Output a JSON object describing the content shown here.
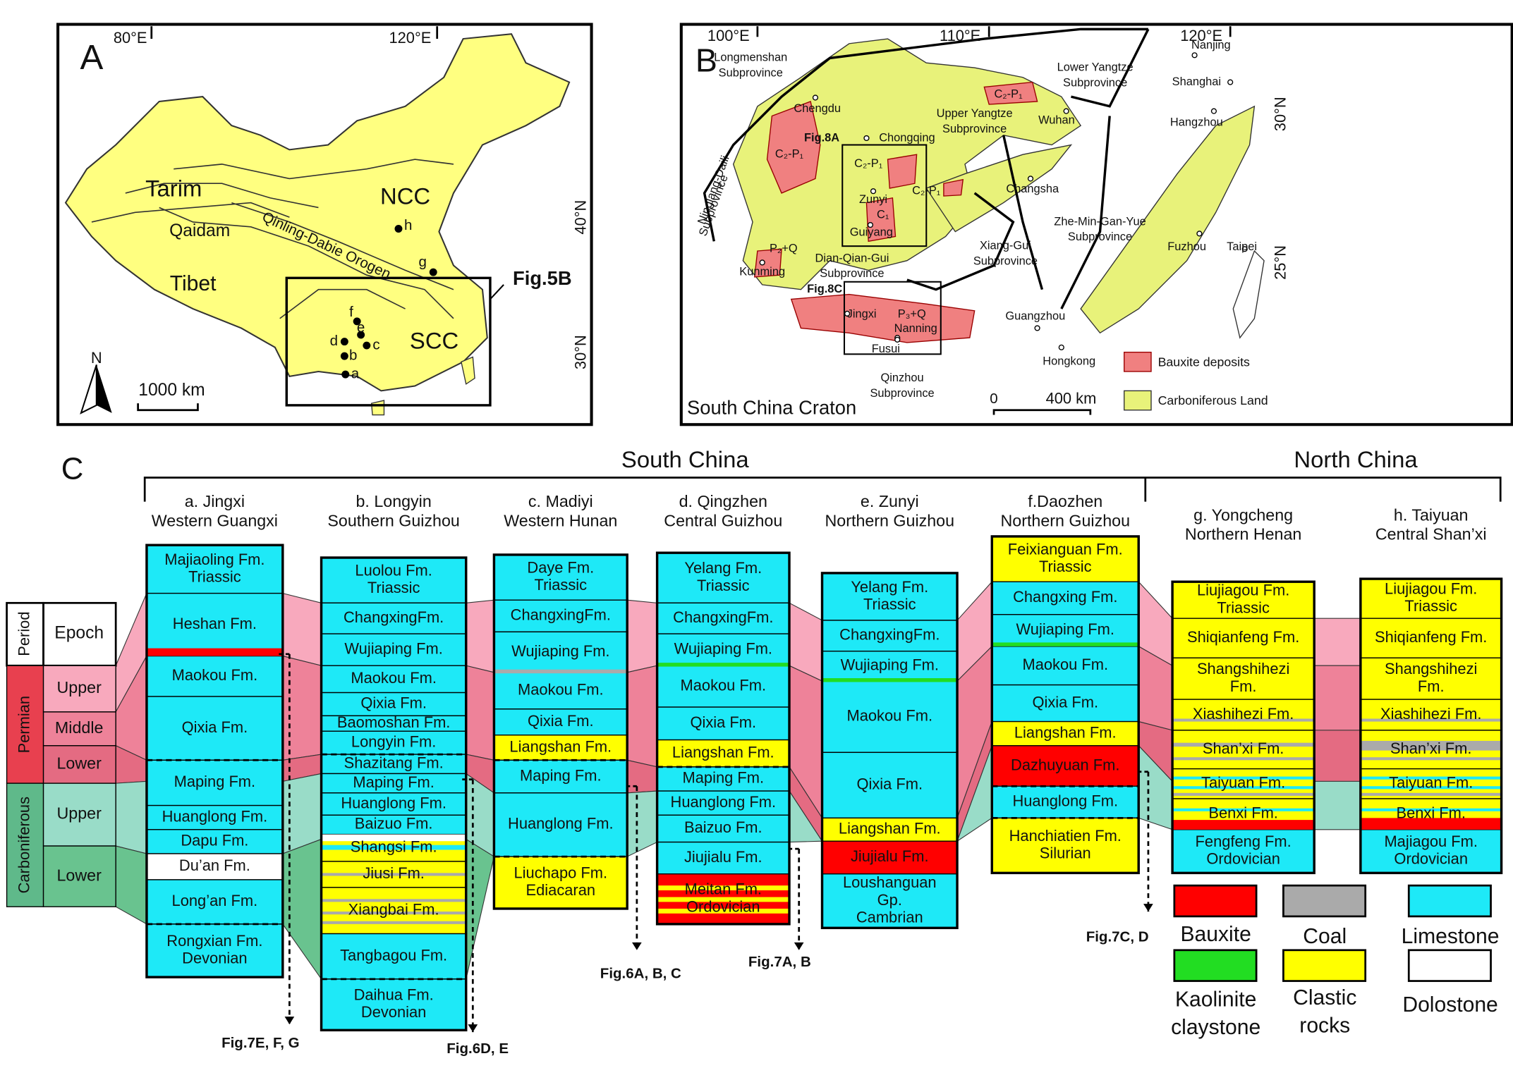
{
  "panel_a": {
    "letter": "A",
    "lon_labels": [
      "80°E",
      "120°E"
    ],
    "lat_labels": [
      "40°N",
      "30°N"
    ],
    "regions": [
      "Tarim",
      "Qaidam",
      "Qinling-Dabie Orogen",
      "NCC",
      "Tibet",
      "SCC"
    ],
    "sites": [
      "a",
      "b",
      "c",
      "d",
      "e",
      "f",
      "g",
      "h"
    ],
    "callout": "Fig.5B",
    "north": "N",
    "scale": "1000 km"
  },
  "panel_b": {
    "letter": "B",
    "lon_labels": [
      "100°E",
      "110°E",
      "120°E"
    ],
    "lat_labels": [
      "30°N",
      "25°N"
    ],
    "subprovinces": [
      [
        "Longmenshan",
        "Subprovince"
      ],
      [
        "Lower Yangtze",
        "Subprovince"
      ],
      [
        "Upper Yangtze",
        "Subprovince"
      ],
      [
        "Ninglang-Daili",
        "Subprovince"
      ],
      [
        "Dian-Qian-Gui",
        "Subprovince"
      ],
      [
        "Xiang-Gui",
        "Subprovince"
      ],
      [
        "Zhe-Min-Gan-Yue",
        "Subprovince"
      ],
      [
        "Qinzhou",
        "Subprovince"
      ]
    ],
    "cities": [
      "Nanjing",
      "Shanghai",
      "Hangzhou",
      "Wuhan",
      "Chongqing",
      "Chengdu",
      "Changsha",
      "Zunyi",
      "Guiyang",
      "Kunming",
      "Jingxi",
      "Nanning",
      "Fusui",
      "Guangzhou",
      "Hongkong",
      "Fuzhou",
      "Taipei"
    ],
    "deposit_ages": [
      "C₂-P₁",
      "C₂-P₁",
      "C₂-P₁",
      "C₂-P₁",
      "C₁",
      "P₂+Q",
      "P₃+Q"
    ],
    "boxes": [
      "Fig.8A",
      "Fig.8C"
    ],
    "title": "South China Craton",
    "scale_labels": [
      "0",
      "400 km"
    ],
    "legend": [
      "Bauxite deposits",
      "Carboniferous Land"
    ]
  },
  "panel_c": {
    "letter": "C",
    "regions": [
      "South China",
      "North China"
    ],
    "timescale": {
      "header": [
        "Period",
        "Epoch"
      ],
      "periods": [
        "Permian",
        "Carboniferous"
      ],
      "epochs": [
        "Upper",
        "Middle",
        "Lower",
        "Upper",
        "Lower"
      ]
    },
    "columns": [
      {
        "title": [
          "a. Jingxi",
          "Western Guangxi"
        ],
        "units": [
          [
            "Majiaoling Fm.",
            "Triassic"
          ],
          "Heshan Fm.",
          "Maokou Fm.",
          "Qixia Fm.",
          "Maping Fm.",
          "Huanglong Fm.",
          "Dapu Fm.",
          "Du’an Fm.",
          "Long’an Fm.",
          [
            "Rongxian Fm.",
            "Devonian"
          ]
        ]
      },
      {
        "title": [
          "b. Longyin",
          "Southern Guizhou"
        ],
        "units": [
          [
            "Luolou Fm.",
            "Triassic"
          ],
          "ChangxingFm.",
          "Wujiaping Fm.",
          "Maokou Fm.",
          "Qixia Fm.",
          "Baomoshan Fm.",
          "Longyin Fm.",
          "Shazitang Fm.",
          "Maping Fm.",
          "Huanglong Fm.",
          "Baizuo Fm.",
          "Shangsi Fm.",
          "Jiusi Fm.",
          "Xiangbai Fm.",
          "Tangbagou Fm.",
          [
            "Daihua Fm.",
            "Devonian"
          ]
        ]
      },
      {
        "title": [
          "c. Madiyi",
          "Western Hunan"
        ],
        "units": [
          [
            "Daye Fm.",
            "Triassic"
          ],
          "ChangxingFm.",
          "Wujiaping Fm.",
          "Maokou Fm.",
          "Qixia Fm.",
          "Liangshan Fm.",
          "Maping Fm.",
          "Huanglong Fm.",
          [
            "Liuchapo Fm.",
            "Ediacaran"
          ]
        ]
      },
      {
        "title": [
          "d. Qingzhen",
          "Central Guizhou"
        ],
        "units": [
          [
            "Yelang Fm.",
            "Triassic"
          ],
          "ChangxingFm.",
          "Wujiaping Fm.",
          "Maokou Fm.",
          "Qixia Fm.",
          "Liangshan Fm.",
          "Maping Fm.",
          "Huanglong Fm.",
          "Baizuo Fm.",
          "Jiujialu Fm.",
          [
            "Meitan Fm.",
            "Ordovician"
          ]
        ]
      },
      {
        "title": [
          "e. Zunyi",
          "Northern Guizhou"
        ],
        "units": [
          [
            "Yelang Fm.",
            "Triassic"
          ],
          "ChangxingFm.",
          "Wujiaping Fm.",
          "Maokou Fm.",
          "Qixia Fm.",
          "Liangshan Fm.",
          "Jiujialu Fm.",
          [
            "Loushanguan",
            "Gp.",
            "Cambrian"
          ]
        ]
      },
      {
        "title": [
          "f.Daozhen",
          "Northern Guizhou"
        ],
        "units": [
          [
            "Feixianguan Fm.",
            "Triassic"
          ],
          "Changxing Fm.",
          "Wujiaping Fm.",
          "Maokou Fm.",
          "Qixia Fm.",
          "Liangshan Fm.",
          "Dazhuyuan Fm.",
          "Huanglong Fm.",
          [
            "Hanchiatien Fm.",
            "Silurian"
          ]
        ]
      },
      {
        "title": [
          "g. Yongcheng",
          "Northern Henan"
        ],
        "units": [
          [
            "Liujiagou Fm.",
            "Triassic"
          ],
          "Shiqianfeng Fm.",
          [
            "Shangshihezi",
            "Fm."
          ],
          "Xiashihezi Fm.",
          "Shan’xi Fm.",
          "Taiyuan Fm.",
          "Benxi Fm.",
          [
            "Fengfeng Fm.",
            "Ordovician"
          ]
        ]
      },
      {
        "title": [
          "h. Taiyuan",
          "Central Shan’xi"
        ],
        "units": [
          [
            "Liujiagou Fm.",
            "Triassic"
          ],
          "Shiqianfeng Fm.",
          [
            "Shangshihezi",
            "Fm."
          ],
          "Xiashihezi Fm.",
          "Shan’xi Fm.",
          "Taiyuan Fm.",
          "Benxi Fm.",
          [
            "Majiagou Fm.",
            "Ordovician"
          ]
        ]
      }
    ],
    "fig_refs": [
      "Fig.7E, F, G",
      "Fig.6D, E",
      "Fig.6A, B, C",
      "Fig.7A, B",
      "Fig.7C, D"
    ],
    "legend": [
      [
        "Bauxite"
      ],
      [
        "Coal"
      ],
      [
        "Limestone"
      ],
      [
        "Kaolinite",
        "claystone"
      ],
      [
        "Clastic",
        "rocks"
      ],
      [
        "Dolostone"
      ]
    ]
  }
}
